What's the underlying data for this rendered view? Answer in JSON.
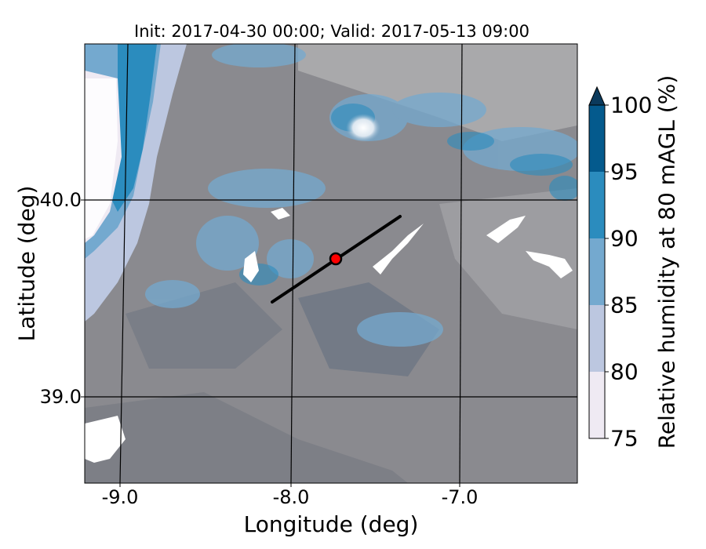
{
  "title": "Init: 2017-04-30 00:00; Valid: 2017-05-13 09:00",
  "x_axis": {
    "label": "Longitude (deg)",
    "ticks": [
      {
        "label": "-9.0",
        "value": -9.0
      },
      {
        "label": "-8.0",
        "value": -8.0
      },
      {
        "label": "-7.0",
        "value": -7.0
      }
    ]
  },
  "y_axis": {
    "label": "Latitude (deg)",
    "ticks": [
      {
        "label": "40.0",
        "value": 40.0
      },
      {
        "label": "39.0",
        "value": 39.0
      }
    ]
  },
  "colorbar": {
    "label": "Relative humidity at 80 mAGL (%)",
    "ticks": [
      "75",
      "80",
      "85",
      "90",
      "95",
      "100"
    ],
    "levels": [
      75,
      80,
      85,
      90,
      95,
      100
    ],
    "colors": [
      "#efeaf3",
      "#bcc7e0",
      "#74a9cf",
      "#2b8cbe",
      "#045a8d"
    ],
    "extend": "max",
    "extend_color": "#0b3a5c"
  },
  "map": {
    "background_color": "#8a8a8f",
    "dark_color": "#6b7280",
    "light_gray": "#a9a9ab",
    "water_mask_color": "#ffffff",
    "marker": {
      "lon": -7.75,
      "lat": 39.7,
      "color": "#ff0000"
    },
    "cross_section": {
      "start": {
        "lon": -8.1,
        "lat": 39.5
      },
      "end": {
        "lon": -7.37,
        "lat": 39.93
      }
    },
    "domain": {
      "lon_min": -9.2,
      "lon_max": -6.35,
      "lat_min": 38.55,
      "lat_max": 40.79
    }
  }
}
